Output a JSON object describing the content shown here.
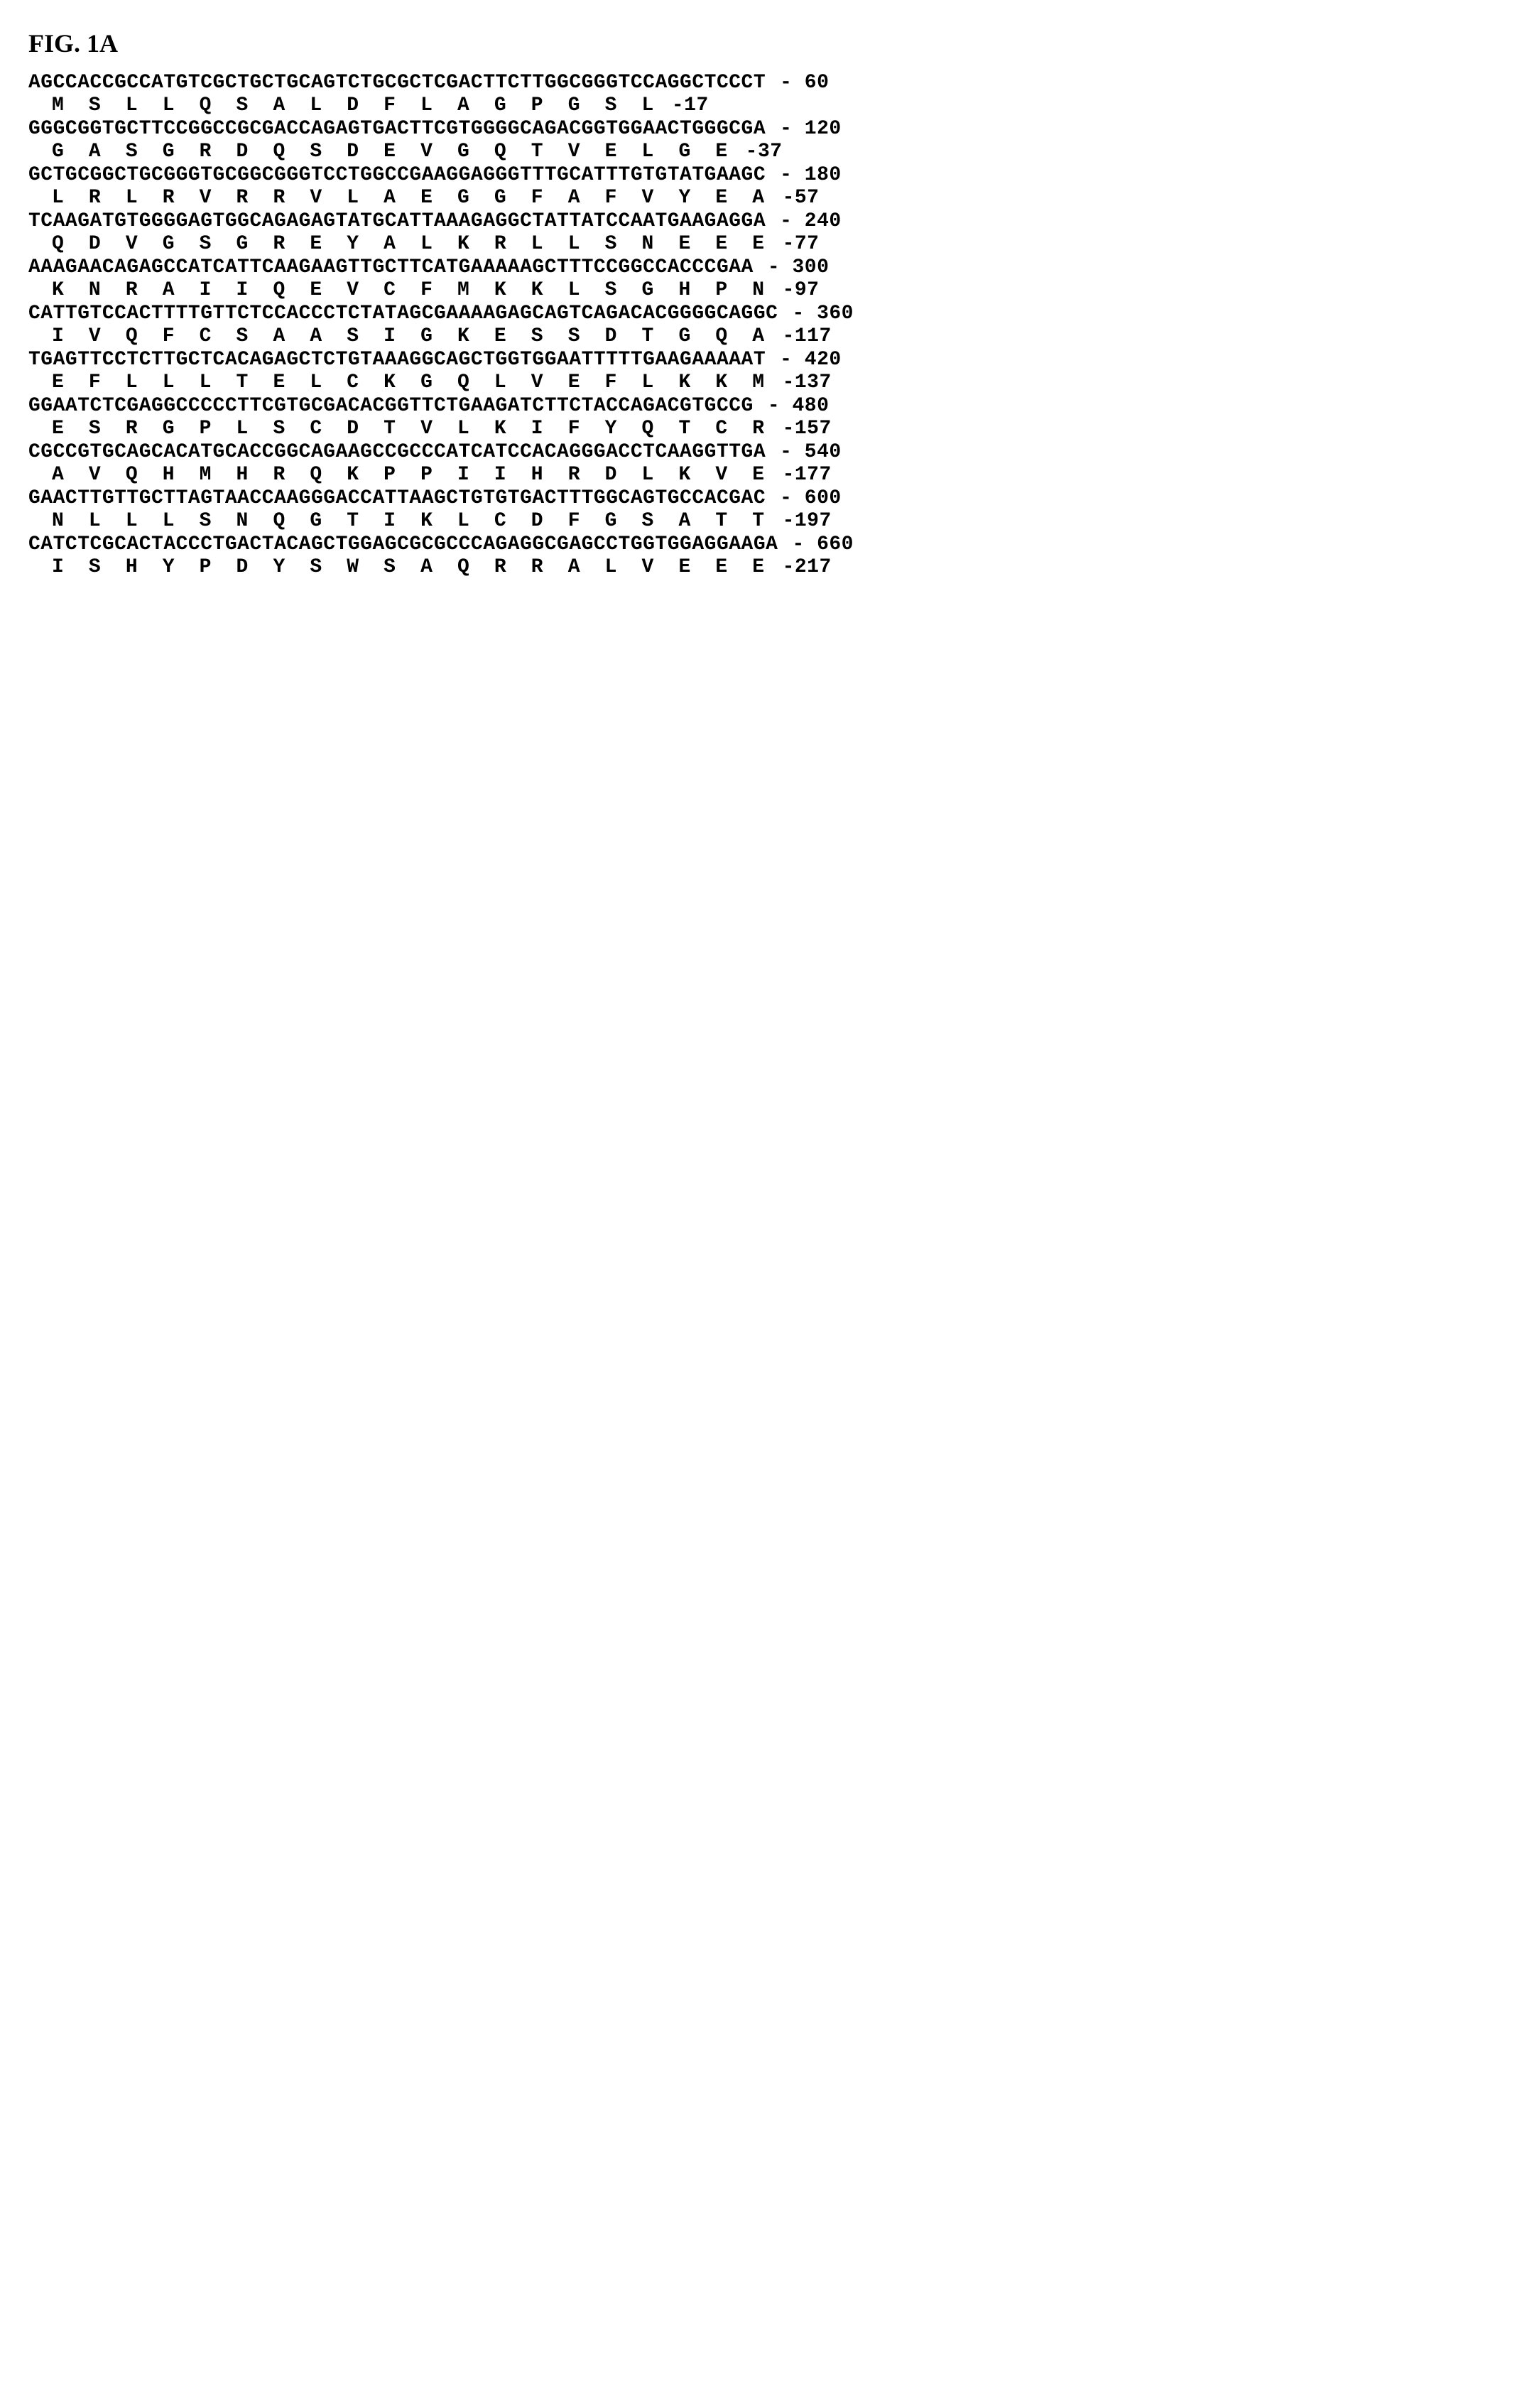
{
  "figure_label": "FIG. 1A",
  "typography": {
    "label_font_family": "Times New Roman",
    "label_font_size_pt": 27,
    "label_font_weight": "bold",
    "sequence_font_family": "Courier New",
    "sequence_font_size_pt": 21,
    "sequence_font_weight": "bold"
  },
  "colors": {
    "background": "#ffffff",
    "text": "#000000"
  },
  "layout": {
    "protein_indent_chars": 2,
    "protein_char_spacing": 3,
    "position_separator": " - "
  },
  "pairs": [
    {
      "nucleotide": "AGCCACCGCCATGTCGCTGCTGCAGTCTGCGCTCGACTTCTTGGCGGGTCCAGGCTCCCT",
      "nuc_pos": "60",
      "protein": "M  S  L  L  Q  S  A  L  D  F  L  A  G  P  G  S  L",
      "prot_pos": "-17"
    },
    {
      "nucleotide": "GGGCGGTGCTTCCGGCCGCGACCAGAGTGACTTCGTGGGGCAGACGGTGGAACTGGGCGA",
      "nuc_pos": "120",
      "protein": "G  A  S  G  R  D  Q  S  D  E  V  G  Q  T  V  E  L  G  E",
      "prot_pos": "-37"
    },
    {
      "nucleotide": "GCTGCGGCTGCGGGTGCGGCGGGTCCTGGCCGAAGGAGGGTTTGCATTTGTGTATGAAGC",
      "nuc_pos": "180",
      "protein": "L  R  L  R  V  R  R  V  L  A  E  G  G  F  A  F  V  Y  E  A",
      "prot_pos": "-57"
    },
    {
      "nucleotide": "TCAAGATGTGGGGAGTGGCAGAGAGTATGCATTAAAGAGGCTATTATCCAATGAAGAGGA",
      "nuc_pos": "240",
      "protein": "Q  D  V  G  S  G  R  E  Y  A  L  K  R  L  L  S  N  E  E  E",
      "prot_pos": "-77"
    },
    {
      "nucleotide": "AAAGAACAGAGCCATCATTCAAGAAGTTGCTTCATGAAAAAGCTTTCCGGCCACCCGAA",
      "nuc_pos": "300",
      "protein": "K  N  R  A  I  I  Q  E  V  C  F  M  K  K  L  S  G  H  P  N",
      "prot_pos": "-97"
    },
    {
      "nucleotide": "CATTGTCCACTTTTGTTCTCCACCCTCTATAGCGAAAAGAGCAGTCAGACACGGGGCAGGC",
      "nuc_pos": "360",
      "protein": "I  V  Q  F  C  S  A  A  S  I  G  K  E  S  S  D  T  G  Q  A",
      "prot_pos": "-117"
    },
    {
      "nucleotide": "TGAGTTCCTCTTGCTCACAGAGCTCTGTAAAGGCAGCTGGTGGAATTTTTGAAGAAAAAT",
      "nuc_pos": "420",
      "protein": "E  F  L  L  L  T  E  L  C  K  G  Q  L  V  E  F  L  K  K  M",
      "prot_pos": "-137"
    },
    {
      "nucleotide": "GGAATCTCGAGGCCCCCTTCGTGCGACACGGTTCTGAAGATCTTCTACCAGACGTGCCG",
      "nuc_pos": "480",
      "protein": "E  S  R  G  P  L  S  C  D  T  V  L  K  I  F  Y  Q  T  C  R",
      "prot_pos": "-157"
    },
    {
      "nucleotide": "CGCCGTGCAGCACATGCACCGGCAGAAGCCGCCCATCATCCACAGGGACCTCAAGGTTGA",
      "nuc_pos": "540",
      "protein": "A  V  Q  H  M  H  R  Q  K  P  P  I  I  H  R  D  L  K  V  E",
      "prot_pos": "-177"
    },
    {
      "nucleotide": "GAACTTGTTGCTTAGTAACCAAGGGACCATTAAGCTGTGTGACTTTGGCAGTGCCACGAC",
      "nuc_pos": "600",
      "protein": "N  L  L  L  S  N  Q  G  T  I  K  L  C  D  F  G  S  A  T  T",
      "prot_pos": "-197"
    },
    {
      "nucleotide": "CATCTCGCACTACCCTGACTACAGCTGGAGCGCGCCCAGAGGCGAGCCTGGTGGAGGAAGA",
      "nuc_pos": "660",
      "protein": "I  S  H  Y  P  D  Y  S  W  S  A  Q  R  R  A  L  V  E  E  E",
      "prot_pos": "-217"
    }
  ]
}
